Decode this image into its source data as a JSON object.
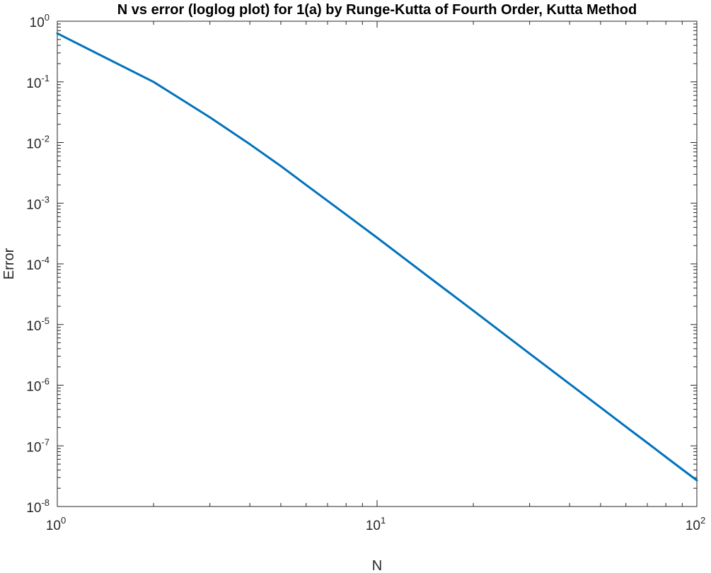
{
  "chart_data": {
    "type": "line",
    "title": "N vs error (loglog plot) for 1(a) by Runge-Kutta of Fourth Order, Kutta Method",
    "xlabel": "N",
    "ylabel": "Error",
    "xscale": "log",
    "yscale": "log",
    "xlim": [
      1,
      100
    ],
    "ylim": [
      1e-08,
      1
    ],
    "grid": false,
    "box": true,
    "line_color": "#0072BD",
    "x_ticks": [
      {
        "base": "10",
        "exp": "0",
        "value": 1
      },
      {
        "base": "10",
        "exp": "1",
        "value": 10
      },
      {
        "base": "10",
        "exp": "2",
        "value": 100
      }
    ],
    "y_ticks": [
      {
        "base": "10",
        "exp": "0",
        "value": 1
      },
      {
        "base": "10",
        "exp": "-1",
        "value": 0.1
      },
      {
        "base": "10",
        "exp": "-2",
        "value": 0.01
      },
      {
        "base": "10",
        "exp": "-3",
        "value": 0.001
      },
      {
        "base": "10",
        "exp": "-4",
        "value": 0.0001
      },
      {
        "base": "10",
        "exp": "-5",
        "value": 1e-05
      },
      {
        "base": "10",
        "exp": "-6",
        "value": 1e-06
      },
      {
        "base": "10",
        "exp": "-7",
        "value": 1e-07
      },
      {
        "base": "10",
        "exp": "-8",
        "value": 1e-08
      }
    ],
    "x": [
      1,
      2,
      3,
      4,
      5,
      6,
      8,
      10,
      15,
      20,
      30,
      40,
      50,
      60,
      70,
      80,
      90,
      100
    ],
    "y": [
      0.63,
      0.1,
      0.026,
      0.0094,
      0.0041,
      0.002,
      0.00065,
      0.00027,
      5.32e-05,
      1.69e-05,
      3.31e-06,
      1.05e-06,
      4.3e-07,
      2.07e-07,
      1.12e-07,
      6.55e-08,
      4.09e-08,
      2.7e-08
    ]
  }
}
